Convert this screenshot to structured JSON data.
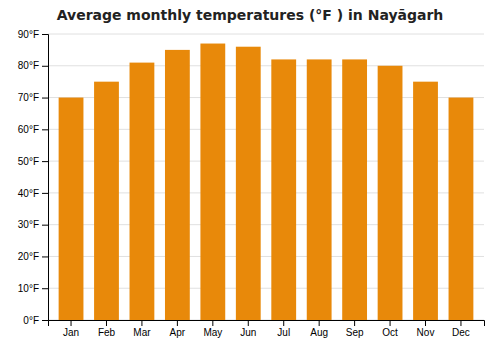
{
  "chart_data": {
    "type": "bar",
    "title": "Average monthly temperatures (°F ) in Nayāgarh",
    "categories": [
      "Jan",
      "Feb",
      "Mar",
      "Apr",
      "May",
      "Jun",
      "Jul",
      "Aug",
      "Sep",
      "Oct",
      "Nov",
      "Dec"
    ],
    "values": [
      70,
      75,
      81,
      85,
      87,
      86,
      82,
      82,
      82,
      80,
      75,
      70
    ],
    "color": "#E8890A",
    "ylim": [
      0,
      90
    ],
    "yticks": [
      {
        "value": 0,
        "label": "0°F"
      },
      {
        "value": 10,
        "label": "10°F"
      },
      {
        "value": 20,
        "label": "20°F"
      },
      {
        "value": 30,
        "label": "30°F"
      },
      {
        "value": 40,
        "label": "40°F"
      },
      {
        "value": 50,
        "label": "50°F"
      },
      {
        "value": 60,
        "label": "60°F"
      },
      {
        "value": 70,
        "label": "70°F"
      },
      {
        "value": 80,
        "label": "80°F"
      },
      {
        "value": 90,
        "label": "90°F"
      }
    ],
    "grid": true
  }
}
